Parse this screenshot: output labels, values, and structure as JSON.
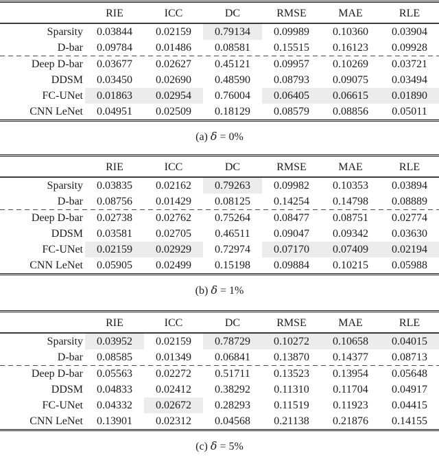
{
  "highlight_color": "#ececec",
  "columns": [
    "RIE",
    "ICC",
    "DC",
    "RMSE",
    "MAE",
    "RLE"
  ],
  "tables": [
    {
      "id": "a",
      "caption": {
        "prefix": "(a)",
        "symbol": "δ",
        "suffix": "= 0%"
      },
      "dashed_separator_after_row": "D-bar",
      "rows": [
        {
          "label": "Sparsity",
          "values": [
            "0.03844",
            "0.02159",
            "0.79134",
            "0.09989",
            "0.10360",
            "0.03904"
          ],
          "highlighted_columns": [
            "DC"
          ]
        },
        {
          "label": "D-bar",
          "values": [
            "0.09784",
            "0.01486",
            "0.08581",
            "0.15515",
            "0.16123",
            "0.09928"
          ],
          "highlighted_columns": []
        },
        {
          "label": "Deep D-bar",
          "values": [
            "0.03677",
            "0.02627",
            "0.45121",
            "0.09957",
            "0.10269",
            "0.03721"
          ],
          "highlighted_columns": []
        },
        {
          "label": "DDSM",
          "values": [
            "0.03450",
            "0.02690",
            "0.48590",
            "0.08793",
            "0.09075",
            "0.03494"
          ],
          "highlighted_columns": []
        },
        {
          "label": "FC-UNet",
          "values": [
            "0.01863",
            "0.02954",
            "0.76004",
            "0.06405",
            "0.06615",
            "0.01890"
          ],
          "highlighted_columns": [
            "RIE",
            "ICC",
            "RMSE",
            "MAE",
            "RLE"
          ]
        },
        {
          "label": "CNN LeNet",
          "values": [
            "0.04951",
            "0.02509",
            "0.18129",
            "0.08579",
            "0.08856",
            "0.05011"
          ],
          "highlighted_columns": []
        }
      ]
    },
    {
      "id": "b",
      "caption": {
        "prefix": "(b)",
        "symbol": "δ",
        "suffix": "= 1%"
      },
      "dashed_separator_after_row": "D-bar",
      "rows": [
        {
          "label": "Sparsity",
          "values": [
            "0.03835",
            "0.02162",
            "0.79263",
            "0.09982",
            "0.10353",
            "0.03894"
          ],
          "highlighted_columns": [
            "DC"
          ]
        },
        {
          "label": "D-bar",
          "values": [
            "0.08756",
            "0.01429",
            "0.08125",
            "0.14254",
            "0.14798",
            "0.08889"
          ],
          "highlighted_columns": []
        },
        {
          "label": "Deep D-bar",
          "values": [
            "0.02738",
            "0.02762",
            "0.75264",
            "0.08477",
            "0.08751",
            "0.02774"
          ],
          "highlighted_columns": []
        },
        {
          "label": "DDSM",
          "values": [
            "0.03581",
            "0.02705",
            "0.46511",
            "0.09047",
            "0.09342",
            "0.03630"
          ],
          "highlighted_columns": []
        },
        {
          "label": "FC-UNet",
          "values": [
            "0.02159",
            "0.02929",
            "0.72974",
            "0.07170",
            "0.07409",
            "0.02194"
          ],
          "highlighted_columns": [
            "RIE",
            "ICC",
            "RMSE",
            "MAE",
            "RLE"
          ]
        },
        {
          "label": "CNN LeNet",
          "values": [
            "0.05905",
            "0.02499",
            "0.15198",
            "0.09884",
            "0.10215",
            "0.05988"
          ],
          "highlighted_columns": []
        }
      ]
    },
    {
      "id": "c",
      "caption": {
        "prefix": "(c)",
        "symbol": "δ",
        "suffix": "= 5%"
      },
      "dashed_separator_after_row": "D-bar",
      "rows": [
        {
          "label": "Sparsity",
          "values": [
            "0.03952",
            "0.02159",
            "0.78729",
            "0.10272",
            "0.10658",
            "0.04015"
          ],
          "highlighted_columns": [
            "RIE",
            "DC",
            "RMSE",
            "MAE",
            "RLE"
          ]
        },
        {
          "label": "D-bar",
          "values": [
            "0.08585",
            "0.01349",
            "0.06841",
            "0.13870",
            "0.14377",
            "0.08713"
          ],
          "highlighted_columns": []
        },
        {
          "label": "Deep D-bar",
          "values": [
            "0.05563",
            "0.02272",
            "0.51711",
            "0.13523",
            "0.13954",
            "0.05648"
          ],
          "highlighted_columns": []
        },
        {
          "label": "DDSM",
          "values": [
            "0.04833",
            "0.02412",
            "0.38292",
            "0.11310",
            "0.11704",
            "0.04917"
          ],
          "highlighted_columns": []
        },
        {
          "label": "FC-UNet",
          "values": [
            "0.04332",
            "0.02672",
            "0.28293",
            "0.11519",
            "0.11923",
            "0.04415"
          ],
          "highlighted_columns": [
            "ICC"
          ]
        },
        {
          "label": "CNN LeNet",
          "values": [
            "0.13901",
            "0.02312",
            "0.04568",
            "0.21138",
            "0.21876",
            "0.14155"
          ],
          "highlighted_columns": []
        }
      ]
    }
  ]
}
